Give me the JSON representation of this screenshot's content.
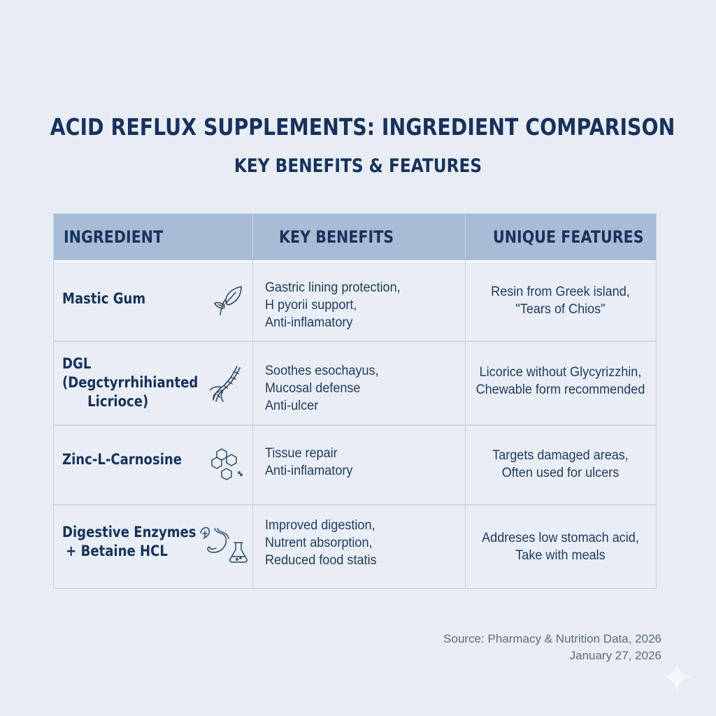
{
  "title": "ACID REFLUX SUPPLEMENTS: INGREDIENT COMPARISON",
  "subtitle": "KEY BENEFITS & FEATURES",
  "table": {
    "headers": [
      "INGREDIENT",
      "KEY BENEFITS",
      "UNIQUE FEATURES"
    ],
    "rows": [
      {
        "ingredient": [
          "Mastic Gum"
        ],
        "icon": "leaf-icon",
        "benefits": [
          "Gastric lining protection,",
          "H pyorii support,",
          "Anti-inflamatory"
        ],
        "features": [
          "Resin from Greek island,",
          "\"Tears of Chios\""
        ]
      },
      {
        "ingredient": [
          "DGL",
          "(Degctyrrhihianted",
          "Licrioce)"
        ],
        "icon": "licorice-root-icon",
        "benefits": [
          "Soothes esochayus,",
          "Mucosal defense",
          "Anti-ulcer"
        ],
        "features": [
          "Licorice without Glycyrizzhin,",
          "Chewable form recommended"
        ]
      },
      {
        "ingredient": [
          "Zinc-L-Carnosine"
        ],
        "icon": "molecule-icon",
        "benefits": [
          "Tissue repair",
          "Anti-inflamatory"
        ],
        "features": [
          "Targets damaged areas,",
          "Often used for ulcers"
        ]
      },
      {
        "ingredient": [
          "Digestive Enzymes",
          "+ Betaine HCL"
        ],
        "icon": "stomach-flask-icon",
        "benefits": [
          "Improved digestion,",
          "Nutrent absorption,",
          "Reduced food statis"
        ],
        "features": [
          "Addreses low stomach acid,",
          "Take with meals"
        ]
      }
    ]
  },
  "source": {
    "line1": "Source: Pharmacy & Nutrition Data, 2026",
    "line2": "January 27, 2026"
  },
  "colors": {
    "background": "#e8edf5",
    "header": "#a9bcd5",
    "title_text": "#17325a",
    "body_text": "#243a5c"
  }
}
